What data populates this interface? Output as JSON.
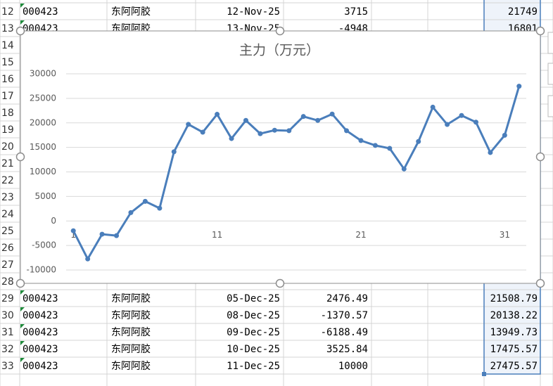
{
  "sheet": {
    "rows": [
      {
        "number": 12,
        "cells": [
          "000423",
          "东阿阿胶",
          "12-Nov-25",
          "3715",
          "21749"
        ]
      },
      {
        "number": 13,
        "cells": [
          "000423",
          "东阿阿胶",
          "13-Nov-25",
          "-4948",
          "16801"
        ]
      },
      {
        "number": 14
      },
      {
        "number": 15
      },
      {
        "number": 16
      },
      {
        "number": 17
      },
      {
        "number": 18
      },
      {
        "number": 19
      },
      {
        "number": 20
      },
      {
        "number": 21
      },
      {
        "number": 22
      },
      {
        "number": 23
      },
      {
        "number": 24
      },
      {
        "number": 25
      },
      {
        "number": 26
      },
      {
        "number": 27
      },
      {
        "number": 28
      },
      {
        "number": 29,
        "cells": [
          "000423",
          "东阿阿胶",
          "05-Dec-25",
          "2476.49",
          "21508.79"
        ]
      },
      {
        "number": 30,
        "cells": [
          "000423",
          "东阿阿胶",
          "08-Dec-25",
          "-1370.57",
          "20138.22"
        ]
      },
      {
        "number": 31,
        "cells": [
          "000423",
          "东阿阿胶",
          "09-Dec-25",
          "-6188.49",
          "13949.73"
        ]
      },
      {
        "number": 32,
        "cells": [
          "000423",
          "东阿阿胶",
          "10-Dec-25",
          "3525.84",
          "17475.57"
        ]
      },
      {
        "number": 33,
        "cells": [
          "000423",
          "东阿阿胶",
          "11-Dec-25",
          "10000",
          "27475.57"
        ]
      }
    ]
  },
  "chart_data": {
    "type": "line",
    "title": "主力（万元）",
    "categories": [
      1,
      null,
      null,
      null,
      null,
      null,
      null,
      null,
      null,
      null,
      11,
      null,
      null,
      null,
      null,
      null,
      null,
      null,
      null,
      null,
      21,
      null,
      null,
      null,
      null,
      null,
      null,
      null,
      null,
      null,
      31,
      null
    ],
    "values": [
      -2000,
      -7750,
      -2700,
      -3000,
      1700,
      4000,
      2600,
      14100,
      19700,
      18100,
      21749,
      16801,
      20500,
      17800,
      18500,
      18400,
      21300,
      20500,
      21800,
      18400,
      16400,
      15400,
      14800,
      10600,
      16200,
      23200,
      19682,
      21508.79,
      20138.22,
      13949.73,
      17475.57,
      27475.57
    ],
    "color": "#4a7ebb",
    "ylim": [
      -10000,
      30000
    ],
    "yticks": [
      -10000,
      -5000,
      0,
      5000,
      10000,
      15000,
      20000,
      25000,
      30000
    ],
    "grid": true
  }
}
